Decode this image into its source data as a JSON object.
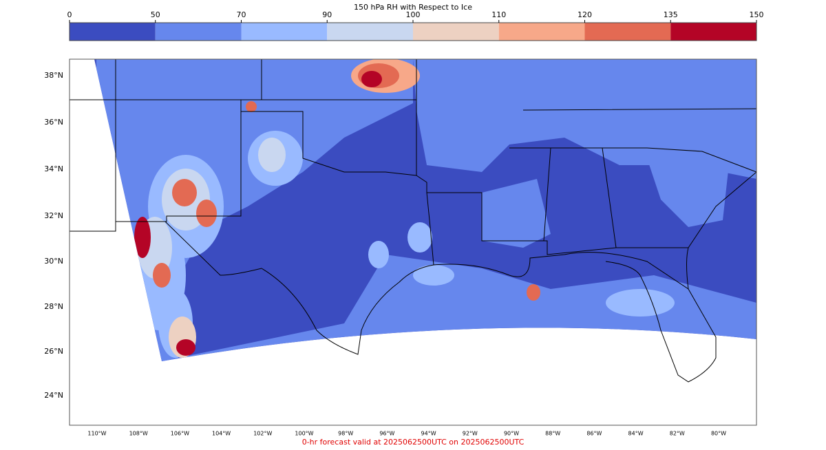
{
  "colorbar": {
    "title": "150 hPa RH with Respect to Ice",
    "boundaries": [
      0,
      50,
      70,
      90,
      100,
      110,
      120,
      135,
      150
    ],
    "colors": [
      "#3b4cc0",
      "#6687ed",
      "#99baff",
      "#c9d7f0",
      "#edd1c2",
      "#f7a889",
      "#e36a53",
      "#b40426"
    ]
  },
  "map": {
    "lat_labels": [
      "38°N",
      "36°N",
      "34°N",
      "32°N",
      "30°N",
      "28°N",
      "26°N",
      "24°N"
    ],
    "lon_labels": [
      "110°W",
      "108°W",
      "106°W",
      "104°W",
      "102°W",
      "100°W",
      "98°W",
      "96°W",
      "94°W",
      "92°W",
      "90°W",
      "88°W",
      "86°W",
      "84°W",
      "82°W",
      "80°W"
    ]
  },
  "footer": "0-hr forecast valid at 2025062500UTC on 2025062500UTC"
}
